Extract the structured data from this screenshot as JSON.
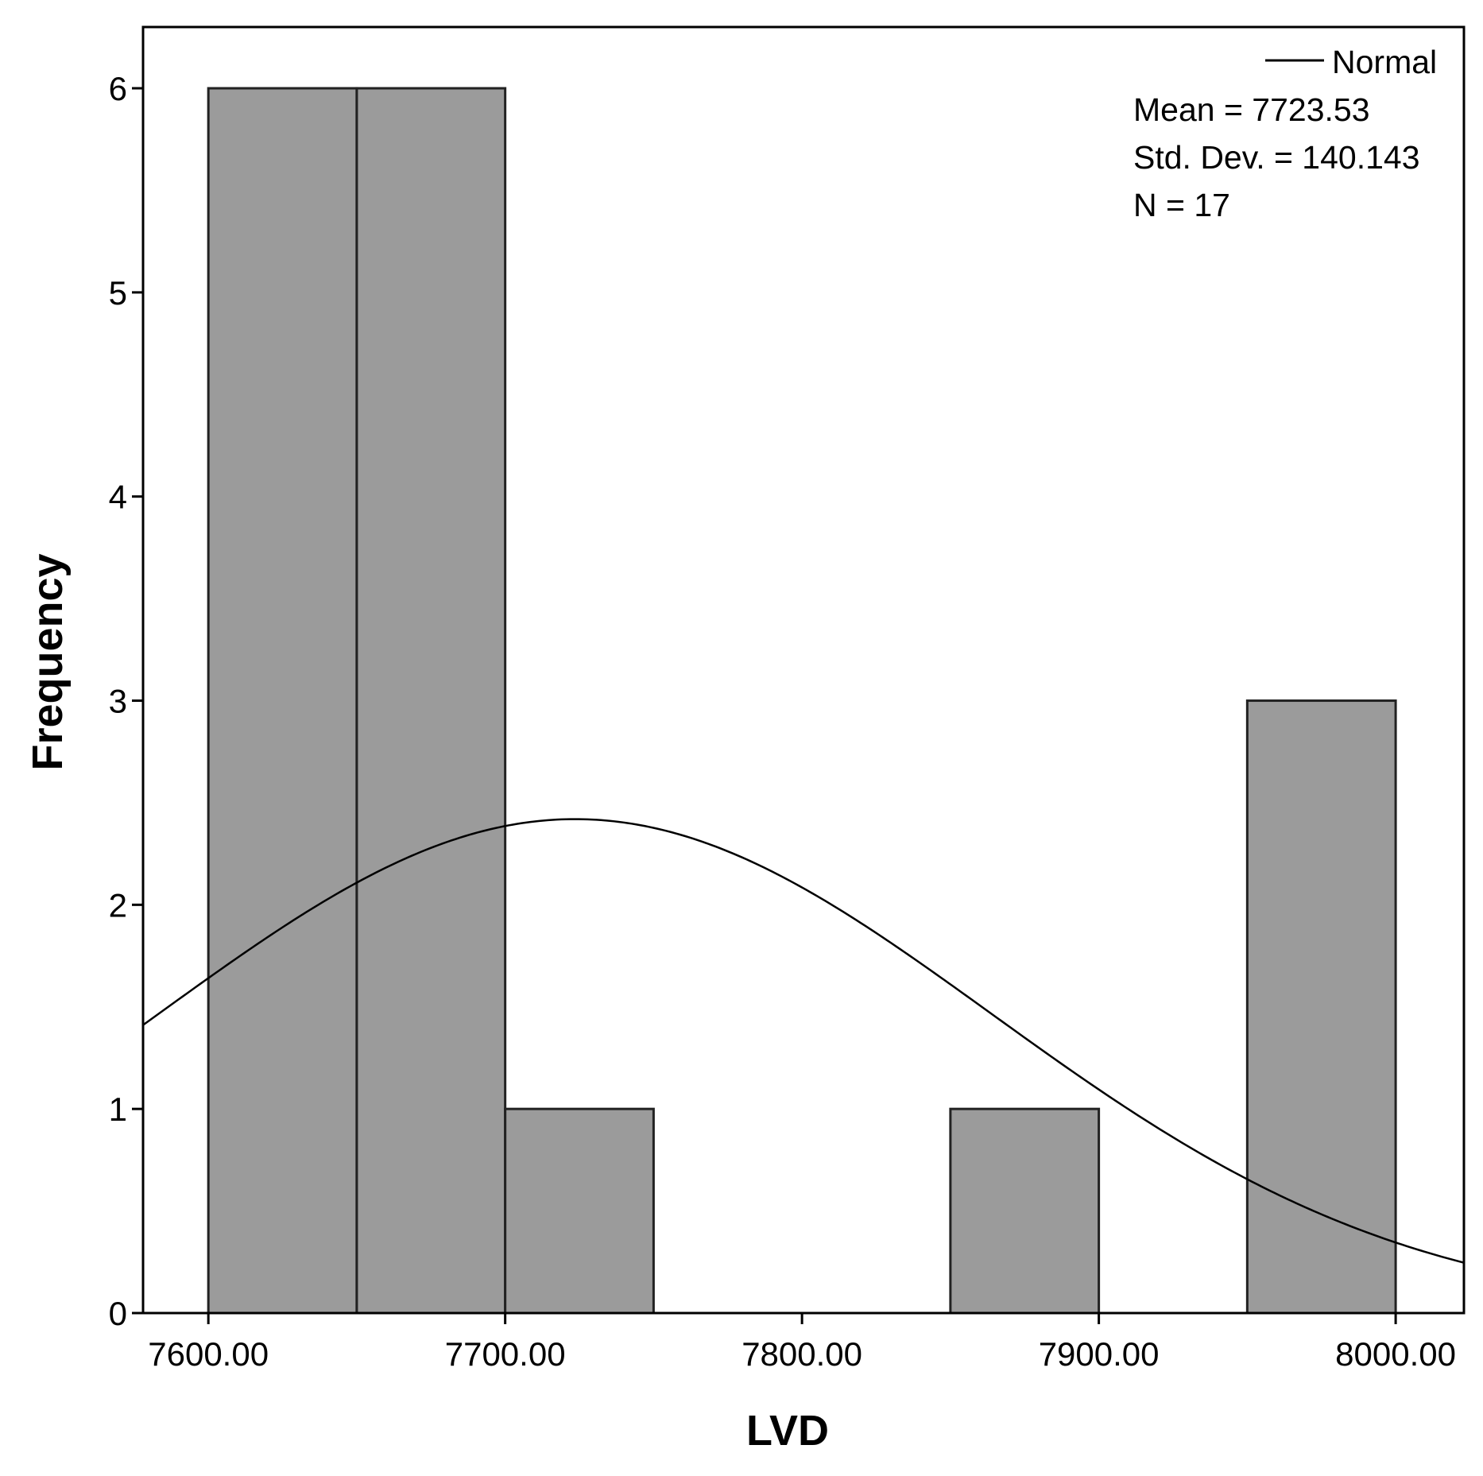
{
  "chart_data": {
    "type": "bar",
    "subtype": "histogram",
    "xlabel": "LVD",
    "ylabel": "Frequency",
    "xlim": [
      7578,
      8023
    ],
    "ylim": [
      0,
      6.3
    ],
    "xticks": [
      7600,
      7700,
      7800,
      7900,
      8000
    ],
    "xtick_labels": [
      "7600.00",
      "7700.00",
      "7800.00",
      "7900.00",
      "8000.00"
    ],
    "yticks": [
      0,
      1,
      2,
      3,
      4,
      5,
      6
    ],
    "ytick_labels": [
      "0",
      "1",
      "2",
      "3",
      "4",
      "5",
      "6"
    ],
    "bins": [
      {
        "start": 7600,
        "end": 7650,
        "count": 6
      },
      {
        "start": 7650,
        "end": 7700,
        "count": 6
      },
      {
        "start": 7700,
        "end": 7750,
        "count": 1
      },
      {
        "start": 7750,
        "end": 7800,
        "count": 0
      },
      {
        "start": 7800,
        "end": 7850,
        "count": 0
      },
      {
        "start": 7850,
        "end": 7900,
        "count": 1
      },
      {
        "start": 7900,
        "end": 7950,
        "count": 0
      },
      {
        "start": 7950,
        "end": 8000,
        "count": 3
      }
    ],
    "bar_color": "#9b9b9b",
    "bar_edge_color": "#222222",
    "normal_curve": {
      "name": "Normal",
      "mean": 7723.53,
      "std_dev": 140.143,
      "n": 17,
      "bin_width": 50
    },
    "legend": {
      "placement": "top-right",
      "line_label": "Normal",
      "stats": [
        "Mean = 7723.53",
        "Std. Dev. = 140.143",
        "N = 17"
      ]
    },
    "grid": false
  }
}
